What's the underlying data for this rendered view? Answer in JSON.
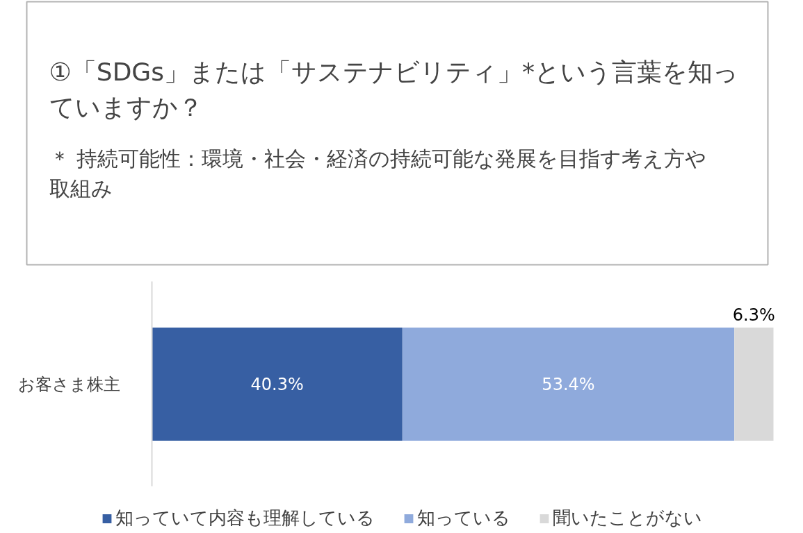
{
  "chart_data": {
    "type": "bar",
    "orientation": "horizontal",
    "stacked": true,
    "title": "①「SDGs」または「サステナビリティ」*という言葉を知っていますか？",
    "subtitle": "＊ 持続可能性：環境・社会・経済の持続可能な発展を目指す考え方や取組み",
    "categories": [
      "お客さま株主"
    ],
    "series": [
      {
        "name": "知っていて内容も理解している",
        "color": "#375fa3",
        "values": [
          40.3
        ],
        "value_labels": [
          "40.3%"
        ]
      },
      {
        "name": "知っている",
        "color": "#8faadc",
        "values": [
          53.4
        ],
        "value_labels": [
          "53.4%"
        ]
      },
      {
        "name": "聞いたことがない",
        "color": "#d9d9d9",
        "values": [
          6.3
        ],
        "value_labels": [
          "6.3%"
        ]
      }
    ],
    "legend": "bottom",
    "grid": false
  }
}
